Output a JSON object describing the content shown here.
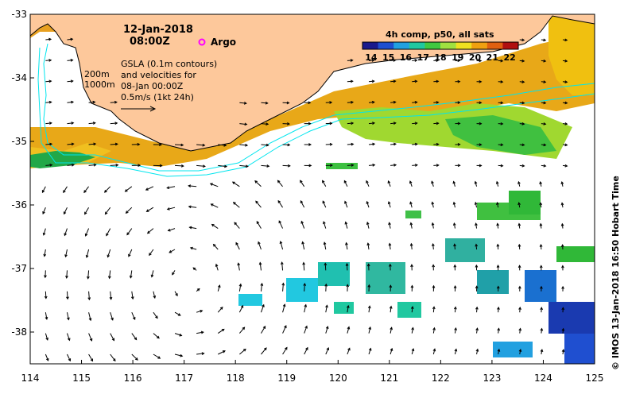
{
  "title": {
    "date": "12-Jan-2018",
    "time": "08:00Z"
  },
  "argo": {
    "label": "Argo",
    "color": "#ff00ff"
  },
  "depth_labels": [
    "200m",
    "1000m"
  ],
  "gsla_note": {
    "line1": "GSLA (0.1m contours)",
    "line2": "and velocities for",
    "line3": "08-Jan 00:00Z",
    "line4": "0.5m/s (1kt 24h)"
  },
  "colorbar": {
    "title": "4h comp, p50, all sats",
    "ticks": [
      "14",
      "15",
      "16",
      "17",
      "18",
      "19",
      "20",
      "21",
      "22"
    ],
    "min": 13.5,
    "max": 22.5,
    "colors": [
      "#1a1a8c",
      "#1f4fd0",
      "#22a0e0",
      "#20c8a0",
      "#40c840",
      "#a0e040",
      "#f0e020",
      "#f0a010",
      "#e06010",
      "#b01010"
    ]
  },
  "x_ticks": [
    "114",
    "115",
    "116",
    "117",
    "118",
    "119",
    "120",
    "121",
    "122",
    "123",
    "124",
    "125"
  ],
  "y_ticks": [
    "-33",
    "-34",
    "-35",
    "-36",
    "-37",
    "-38"
  ],
  "extent": {
    "lon_min": 114,
    "lon_max": 125,
    "lat_min": -38.5,
    "lat_max": -33
  },
  "copyright": "©  IMOS 13-Jan-2018 16:50 Hobart Time",
  "colors": {
    "land": "#fdc89b",
    "ocean": "#ffffff",
    "contour": "#00e5ee",
    "sst_warm": "#e0a010",
    "sst_mid": "#a0d830",
    "sst_green": "#40c040",
    "sst_cool": "#22b0d8",
    "sst_cold": "#1a3ab0"
  }
}
